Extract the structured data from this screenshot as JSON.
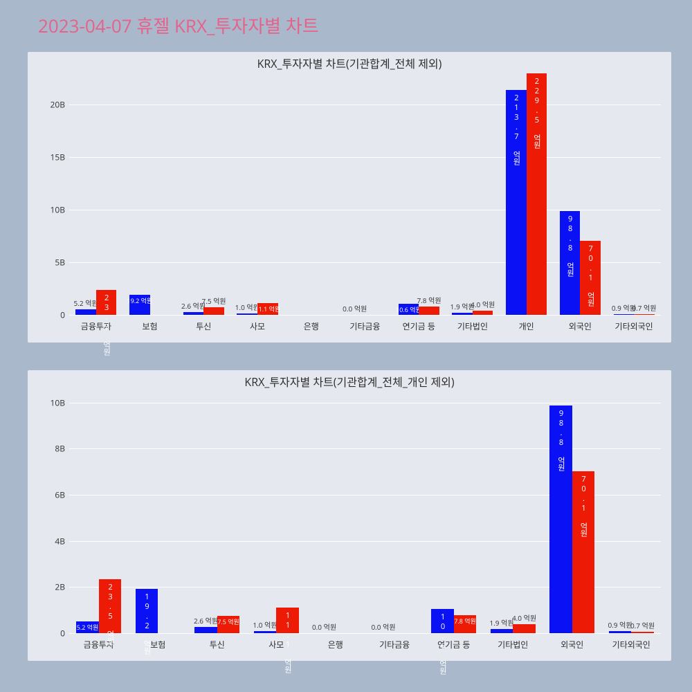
{
  "main_title": "2023-04-07 휴젤 KRX_투자자별 차트",
  "background_color": "#a9b8cb",
  "panel_background": "#e5e8ef",
  "grid_color": "#ffffff",
  "text_color": "#2e2e2e",
  "title_color": "#e6628a",
  "title_fontsize": 26,
  "subtitle_fontsize": 16,
  "tick_fontsize": 12,
  "value_label_fontsize": 10,
  "series_colors": {
    "blue": "#0b11f5",
    "red": "#ed1b05"
  },
  "chart1": {
    "type": "bar",
    "subtitle": "KRX_투자자별 차트(기관합계_전체 제외)",
    "y_max": 23,
    "y_ticks": [
      0,
      5,
      10,
      15,
      20
    ],
    "y_tick_labels": [
      "0",
      "5B",
      "10B",
      "15B",
      "20B"
    ],
    "categories": [
      "금융투자",
      "보험",
      "투신",
      "사모",
      "은행",
      "기타금융",
      "연기금 등",
      "기타법인",
      "개인",
      "외국인",
      "기타외국인"
    ],
    "blue_values": [
      0.52,
      1.92,
      0.26,
      0.1,
      0.0,
      0.0,
      1.06,
      0.19,
      21.37,
      9.88,
      0.09
    ],
    "red_values": [
      2.35,
      0.0,
      0.75,
      1.11,
      0.0,
      0.0,
      0.78,
      0.4,
      22.95,
      7.01,
      0.07
    ],
    "blue_labels": [
      "5.2 억원",
      "19.2 억원",
      "2.6 억원",
      "1.0 억원",
      "",
      "0.0 억원",
      "10.6 억원",
      "1.9 억원",
      "213.7 억원",
      "98.8 억원",
      "0.9 억원"
    ],
    "red_labels": [
      "23.5 억원",
      "",
      "7.5 억원",
      "11.1 억원",
      "",
      "",
      "7.8 억원",
      "4.0 억원",
      "229.5 억원",
      "70.1 억원",
      "0.7 억원"
    ]
  },
  "chart2": {
    "type": "bar",
    "subtitle": "KRX_투자자별 차트(기관합계_전체_개인 제외)",
    "y_max": 10.5,
    "y_ticks": [
      0,
      2,
      4,
      6,
      8,
      10
    ],
    "y_tick_labels": [
      "0",
      "2B",
      "4B",
      "6B",
      "8B",
      "10B"
    ],
    "categories": [
      "금융투자",
      "보험",
      "투신",
      "사모",
      "은행",
      "기타금융",
      "연기금 등",
      "기타법인",
      "외국인",
      "기타외국인"
    ],
    "blue_values": [
      0.52,
      1.92,
      0.26,
      0.1,
      0.0,
      0.0,
      1.06,
      0.19,
      9.88,
      0.09
    ],
    "red_values": [
      2.35,
      0.0,
      0.75,
      1.11,
      0.0,
      0.0,
      0.78,
      0.4,
      7.01,
      0.07
    ],
    "blue_labels": [
      "5.2 억원",
      "19.2 억원",
      "2.6 억원",
      "1.0 억원",
      "0.0 억원",
      "0.0 억원",
      "10.6 억원",
      "1.9 억원",
      "98.8 억원",
      "0.9 억원"
    ],
    "red_labels": [
      "23.5 억원",
      "",
      "7.5 억원",
      "11.1 억원",
      "",
      "",
      "7.8 억원",
      "4.0 억원",
      "70.1 억원",
      "0.7 억원"
    ]
  }
}
